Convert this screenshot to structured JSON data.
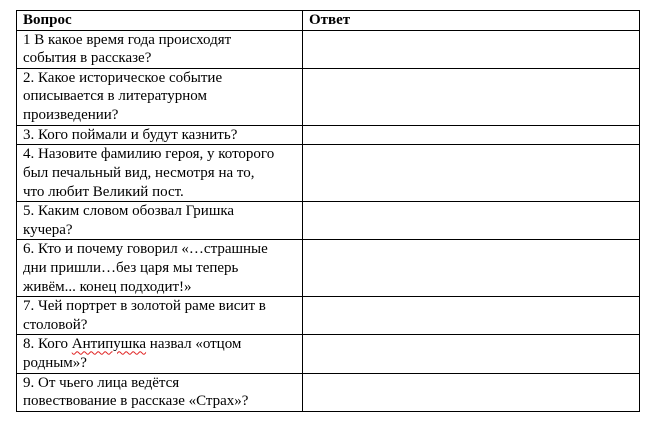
{
  "table": {
    "headers": [
      "Вопрос",
      "Ответ"
    ],
    "rows": [
      {
        "question": [
          "1 В какое время года происходят",
          "события в рассказе?"
        ],
        "answer": ""
      },
      {
        "question": [
          "2. Какое историческое событие",
          "описывается в литературном",
          "произведении?"
        ],
        "answer": ""
      },
      {
        "question": [
          "3. Кого поймали и будут казнить?"
        ],
        "answer": ""
      },
      {
        "question": [
          "4. Назовите фамилию героя, у которого",
          "был печальный вид, несмотря на то,",
          "что любит Великий пост."
        ],
        "answer": ""
      },
      {
        "question": [
          "5. Каким словом обозвал Гришка",
          "кучера?"
        ],
        "answer": ""
      },
      {
        "question": [
          "6. Кто и почему говорил «…страшные",
          "дни пришли…без царя мы теперь",
          "живём... конец подходит!»"
        ],
        "answer": ""
      },
      {
        "question": [
          "7. Чей портрет в золотой раме висит в",
          "столовой?"
        ],
        "answer": ""
      },
      {
        "question": [
          "8. Кого Антипушка назвал «отцом",
          "родным»?"
        ],
        "answer": "",
        "misspelled_word": "Антипушка"
      },
      {
        "question": [
          "9. От чьего лица ведётся",
          "повествование в рассказе «Страх»?"
        ],
        "answer": ""
      }
    ]
  },
  "colors": {
    "border": "#000000",
    "spellcheck_underline": "#e02020"
  }
}
